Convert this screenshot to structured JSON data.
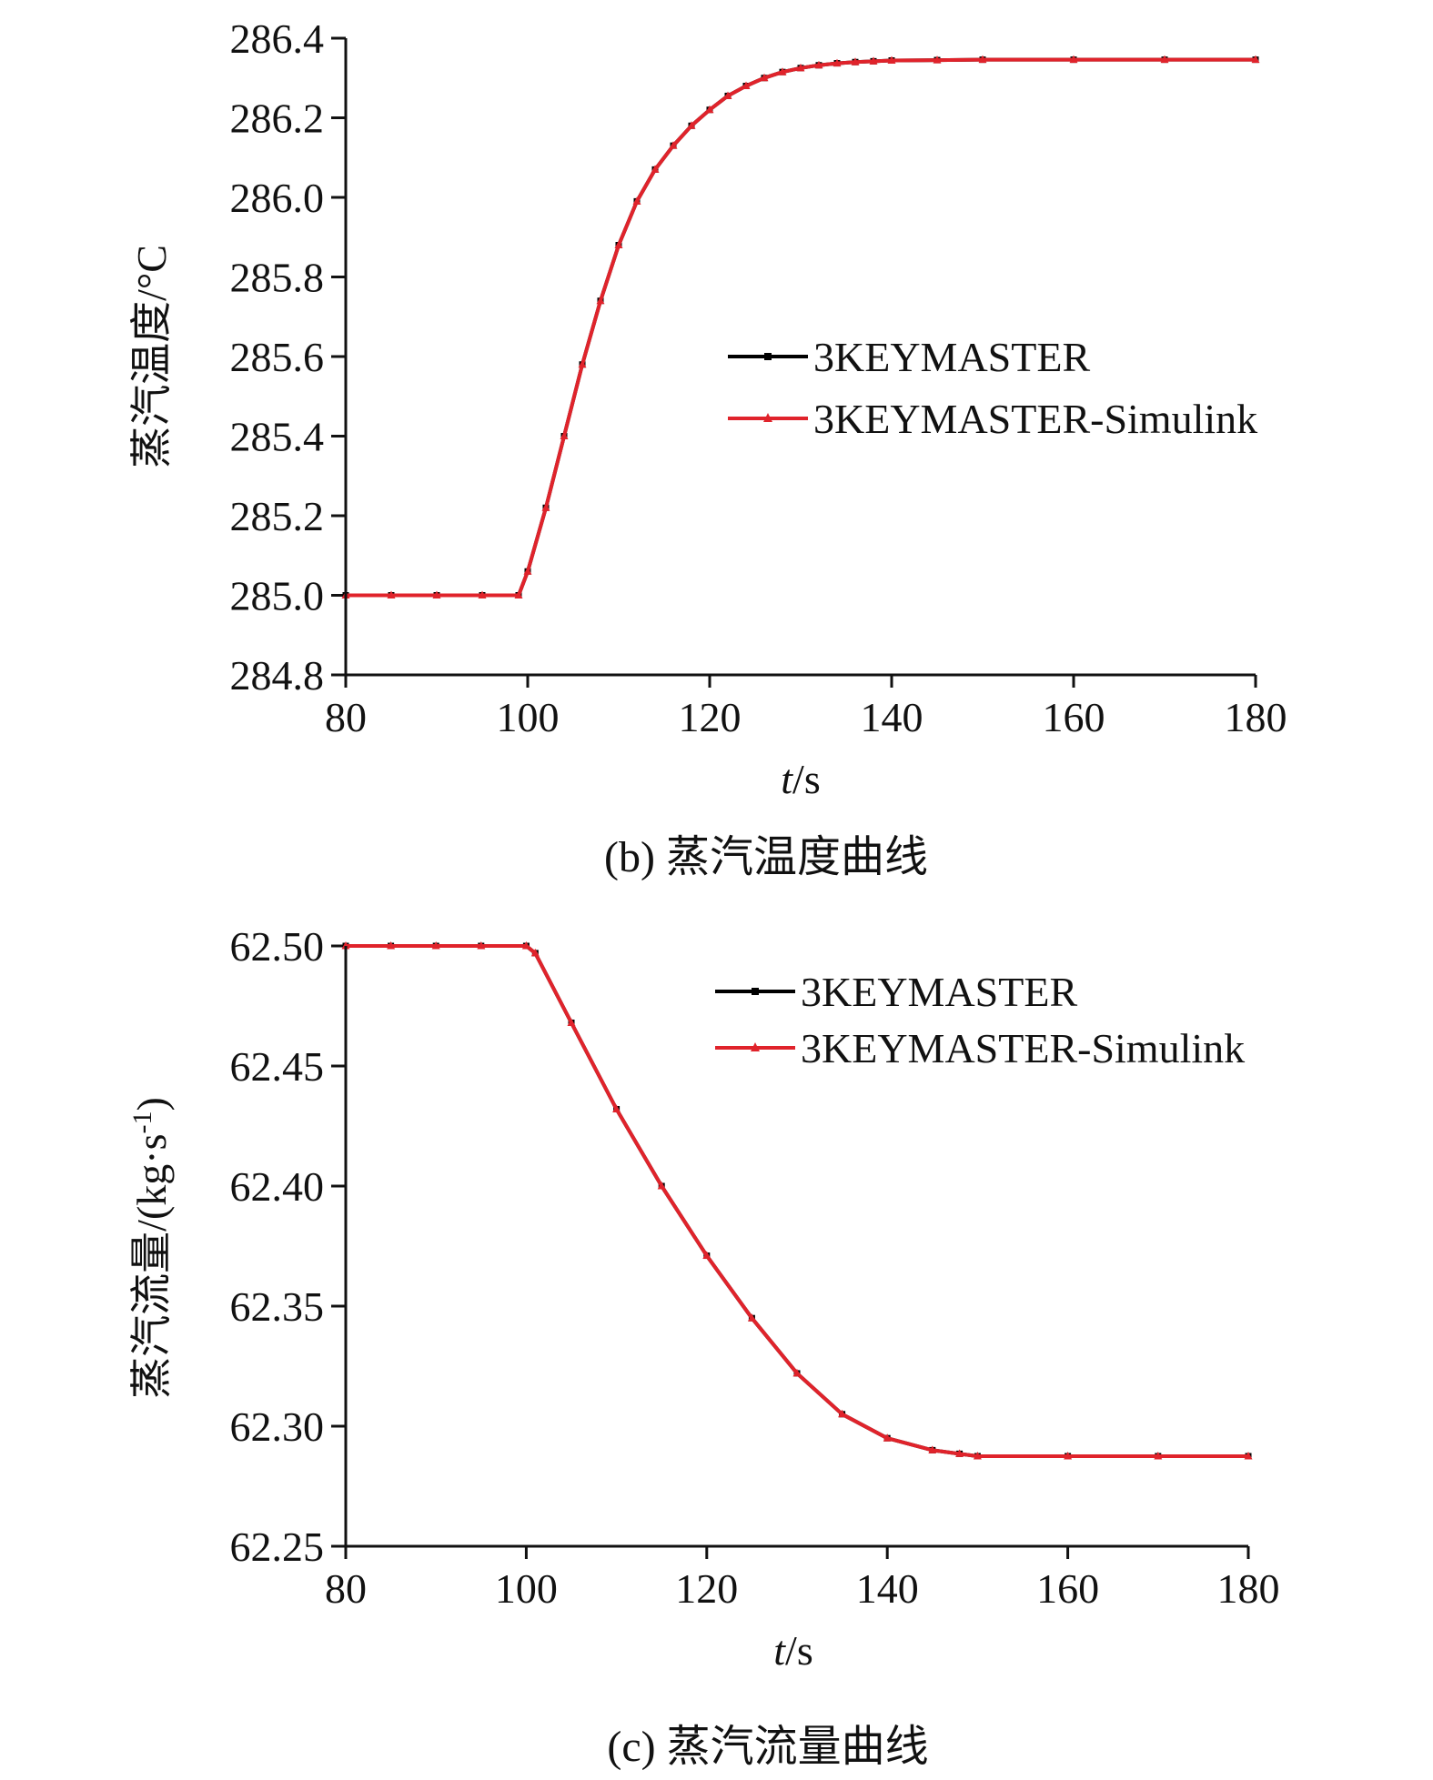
{
  "chart_data": [
    {
      "type": "line",
      "caption": "(b) 蒸汽温度曲线",
      "xlabel_italic": "t",
      "xlabel_rest": "/s",
      "ylabel": "蒸汽温度/°C",
      "xlim": [
        80,
        180
      ],
      "ylim": [
        284.8,
        286.4
      ],
      "xticks": [
        80,
        100,
        120,
        140,
        160,
        180
      ],
      "yticks": [
        284.8,
        285.0,
        285.2,
        285.4,
        285.6,
        285.8,
        286.0,
        286.2,
        286.4
      ],
      "ytick_labels": [
        "284.8",
        "285.0",
        "285.2",
        "285.4",
        "285.6",
        "285.8",
        "286.0",
        "286.2",
        "286.4"
      ],
      "legend_position": "center-right",
      "colors": {
        "3KEYMASTER": "#000000",
        "3KEYMASTER-Simulink": "#e0232b"
      },
      "series": [
        {
          "name": "3KEYMASTER",
          "x": [
            80,
            85,
            90,
            95,
            99,
            100,
            102,
            104,
            106,
            108,
            110,
            112,
            114,
            116,
            118,
            120,
            122,
            124,
            126,
            128,
            130,
            132,
            134,
            136,
            138,
            140,
            145,
            150,
            160,
            170,
            180
          ],
          "y": [
            285.0,
            285.0,
            285.0,
            285.0,
            285.0,
            285.06,
            285.22,
            285.4,
            285.58,
            285.74,
            285.88,
            285.99,
            286.07,
            286.13,
            286.18,
            286.22,
            286.255,
            286.28,
            286.3,
            286.315,
            286.325,
            286.332,
            286.337,
            286.34,
            286.342,
            286.344,
            286.345,
            286.346,
            286.346,
            286.346,
            286.346
          ]
        },
        {
          "name": "3KEYMASTER-Simulink",
          "x": [
            80,
            85,
            90,
            95,
            99,
            100,
            102,
            104,
            106,
            108,
            110,
            112,
            114,
            116,
            118,
            120,
            122,
            124,
            126,
            128,
            130,
            132,
            134,
            136,
            138,
            140,
            145,
            150,
            160,
            170,
            180
          ],
          "y": [
            285.0,
            285.0,
            285.0,
            285.0,
            285.0,
            285.06,
            285.22,
            285.4,
            285.58,
            285.74,
            285.88,
            285.99,
            286.07,
            286.13,
            286.18,
            286.22,
            286.255,
            286.28,
            286.3,
            286.315,
            286.325,
            286.332,
            286.337,
            286.34,
            286.342,
            286.344,
            286.345,
            286.346,
            286.346,
            286.346,
            286.346
          ]
        }
      ]
    },
    {
      "type": "line",
      "caption": "(c) 蒸汽流量曲线",
      "xlabel_italic": "t",
      "xlabel_rest": "/s",
      "ylabel_main": "蒸汽流量/(kg·s",
      "ylabel_sup": "-1",
      "ylabel_close": ")",
      "xlim": [
        80,
        180
      ],
      "ylim": [
        62.25,
        62.5
      ],
      "xticks": [
        80,
        100,
        120,
        140,
        160,
        180
      ],
      "yticks": [
        62.25,
        62.3,
        62.35,
        62.4,
        62.45,
        62.5
      ],
      "ytick_labels": [
        "62.25",
        "62.30",
        "62.35",
        "62.40",
        "62.45",
        "62.50"
      ],
      "legend_position": "top-right",
      "colors": {
        "3KEYMASTER": "#000000",
        "3KEYMASTER-Simulink": "#e0232b"
      },
      "series": [
        {
          "name": "3KEYMASTER",
          "x": [
            80,
            85,
            90,
            95,
            100,
            101,
            105,
            110,
            115,
            120,
            125,
            130,
            135,
            140,
            145,
            148,
            150,
            160,
            170,
            180
          ],
          "y": [
            62.5,
            62.5,
            62.5,
            62.5,
            62.5,
            62.497,
            62.468,
            62.432,
            62.4,
            62.371,
            62.345,
            62.322,
            62.305,
            62.295,
            62.29,
            62.2885,
            62.2875,
            62.2875,
            62.2875,
            62.2875
          ]
        },
        {
          "name": "3KEYMASTER-Simulink",
          "x": [
            80,
            85,
            90,
            95,
            100,
            101,
            105,
            110,
            115,
            120,
            125,
            130,
            135,
            140,
            145,
            148,
            150,
            160,
            170,
            180
          ],
          "y": [
            62.5,
            62.5,
            62.5,
            62.5,
            62.5,
            62.497,
            62.468,
            62.432,
            62.4,
            62.371,
            62.345,
            62.322,
            62.305,
            62.295,
            62.29,
            62.2885,
            62.2875,
            62.2875,
            62.2875,
            62.2875
          ]
        }
      ]
    }
  ]
}
